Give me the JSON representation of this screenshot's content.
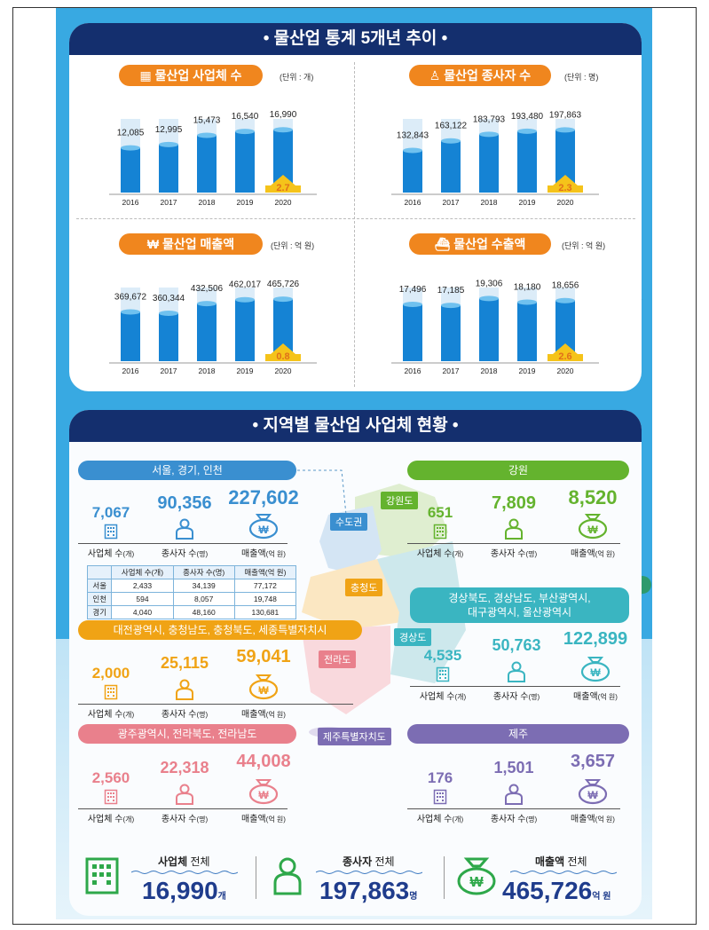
{
  "colors": {
    "navy": "#142f6e",
    "blue": "#1583d4",
    "orange": "#f0861e",
    "yellow": "#f5c31a",
    "seoul": "#3a8fd0",
    "gangwon": "#64b32e",
    "chung": "#f0a315",
    "gyeong": "#3ab5c1",
    "jeolla": "#e9808c",
    "jeju": "#7c6db3"
  },
  "section1": {
    "title": "• 물산업 통계 5개년 추이 •"
  },
  "section2": {
    "title": "• 지역별 물산업 사업체 현황 •"
  },
  "chart_data": [
    {
      "type": "bar",
      "title": "물산업 사업체 수",
      "unit": "(단위 : 개)",
      "categories": [
        "2016",
        "2017",
        "2018",
        "2019",
        "2020"
      ],
      "values": [
        12085,
        12995,
        15473,
        16540,
        16990
      ],
      "value_labels": [
        "12,085",
        "12,995",
        "15,473",
        "16,540",
        "16,990"
      ],
      "growth": "2.7",
      "ylim": [
        0,
        18000
      ]
    },
    {
      "type": "bar",
      "title": "물산업 종사자 수",
      "unit": "(단위 : 명)",
      "categories": [
        "2016",
        "2017",
        "2018",
        "2019",
        "2020"
      ],
      "values": [
        132843,
        163122,
        183793,
        193480,
        197863
      ],
      "value_labels": [
        "132,843",
        "163,122",
        "183,793",
        "193,480",
        "197,863"
      ],
      "growth": "2.3",
      "ylim": [
        0,
        210000
      ]
    },
    {
      "type": "bar",
      "title": "물산업 매출액",
      "unit": "(단위 : 억 원)",
      "categories": [
        "2016",
        "2017",
        "2018",
        "2019",
        "2020"
      ],
      "values": [
        369672,
        360344,
        432506,
        462017,
        465726
      ],
      "value_labels": [
        "369,672",
        "360,344",
        "432,506",
        "462,017",
        "465,726"
      ],
      "growth": "0.8",
      "ylim": [
        0,
        500000
      ]
    },
    {
      "type": "bar",
      "title": "물산업 수출액",
      "unit": "(단위 : 억 원)",
      "categories": [
        "2016",
        "2017",
        "2018",
        "2019",
        "2020"
      ],
      "values": [
        17496,
        17185,
        19306,
        18180,
        18656
      ],
      "value_labels": [
        "17,496",
        "17,185",
        "19,306",
        "18,180",
        "18,656"
      ],
      "growth": "2.6",
      "ylim": [
        0,
        20500
      ]
    }
  ],
  "regions": {
    "seoul": {
      "header": "서울, 경기, 인천",
      "map_label": "수도권",
      "biz": "7,067",
      "emp": "90,356",
      "sales": "227,602"
    },
    "gangwon": {
      "header": "강원",
      "map_label": "강원도",
      "biz": "651",
      "emp": "7,809",
      "sales": "8,520"
    },
    "chung": {
      "header": "대전광역시, 충청남도, 충청북도, 세종특별자치시",
      "map_label": "충청도",
      "biz": "2,000",
      "emp": "25,115",
      "sales": "59,041"
    },
    "gyeong": {
      "header": "경상북도, 경상남도, 부산광역시,\n대구광역시, 울산광역시",
      "map_label": "경상도",
      "biz": "4,535",
      "emp": "50,763",
      "sales": "122,899"
    },
    "jeolla": {
      "header": "광주광역시, 전라북도, 전라남도",
      "map_label": "전라도",
      "biz": "2,560",
      "emp": "22,318",
      "sales": "44,008"
    },
    "jeju": {
      "header": "제주",
      "map_label": "제주특별자치도",
      "biz": "176",
      "emp": "1,501",
      "sales": "3,657"
    }
  },
  "labels": {
    "biz": "사업체 수",
    "biz_unit": "(개)",
    "emp": "종사자 수",
    "emp_unit": "(명)",
    "sales": "매출액",
    "sales_unit": "(억 원)",
    "won": "₩"
  },
  "sub_table": {
    "headers": [
      "",
      "사업체 수(개)",
      "종사자 수(명)",
      "매출액(억 원)"
    ],
    "rows": [
      [
        "서울",
        "2,433",
        "34,139",
        "77,172"
      ],
      [
        "인천",
        "594",
        "8,057",
        "19,748"
      ],
      [
        "경기",
        "4,040",
        "48,160",
        "130,681"
      ]
    ]
  },
  "totals": {
    "biz": {
      "label_bold": "사업체",
      "label": " 전체",
      "value": "16,990",
      "unit": "개"
    },
    "emp": {
      "label_bold": "종사자",
      "label": " 전체",
      "value": "197,863",
      "unit": "명"
    },
    "sales": {
      "label_bold": "매출액",
      "label": " 전체",
      "value": "465,726",
      "unit": "억 원"
    }
  }
}
